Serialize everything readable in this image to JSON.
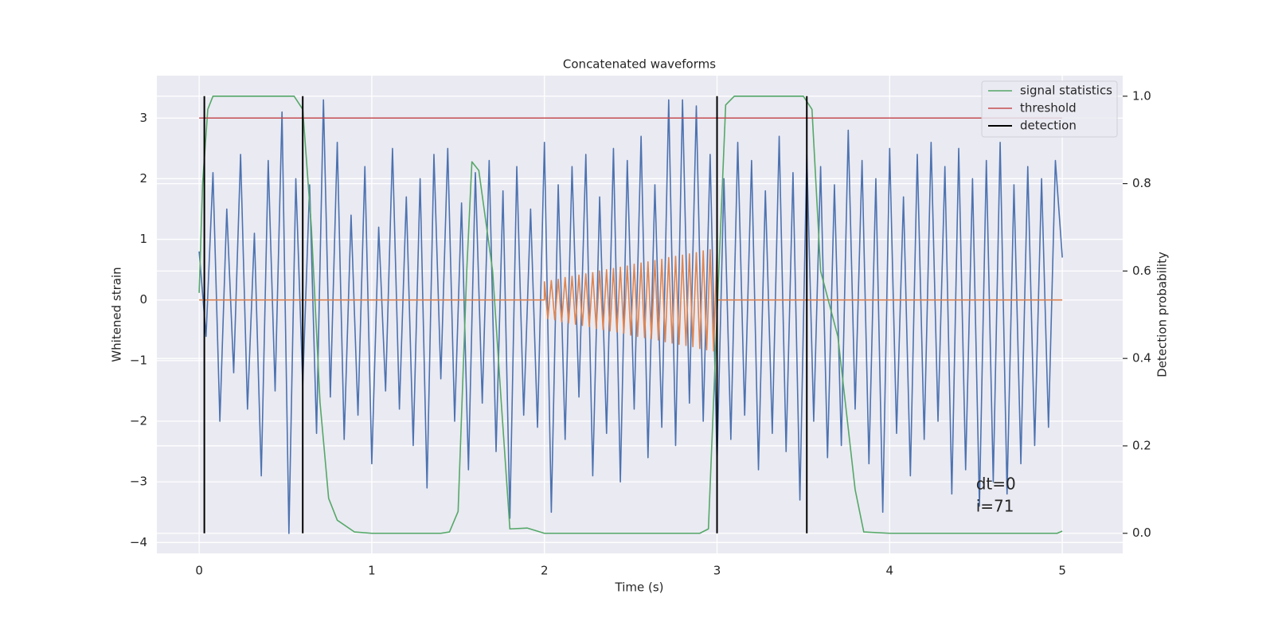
{
  "chart_data": {
    "type": "line",
    "title": "Concatenated waveforms",
    "xlabel": "Time (s)",
    "ylabel": "Whitened strain",
    "y2label": "Detection probability",
    "xlim": [
      -0.245,
      5.35
    ],
    "xticks": [
      0,
      1,
      2,
      3,
      4,
      5
    ],
    "ylim": [
      -4.18,
      3.7
    ],
    "yticks": [
      -4,
      -3,
      -2,
      -1,
      0,
      1,
      2,
      3
    ],
    "y2lim": [
      -0.046,
      1.047
    ],
    "y2ticks": [
      0.0,
      0.2,
      0.4,
      0.6,
      0.8,
      1.0
    ],
    "grid": true,
    "legend": "upper right",
    "series": [
      {
        "color": "#4c72b0",
        "x": [
          0,
          0.04,
          0.08,
          0.12,
          0.16,
          0.2,
          0.24,
          0.28,
          0.32,
          0.36,
          0.4,
          0.44,
          0.48,
          0.52,
          0.56,
          0.6,
          0.64,
          0.68,
          0.72,
          0.76,
          0.8,
          0.84,
          0.88,
          0.92,
          0.96,
          1.0,
          1.04,
          1.08,
          1.12,
          1.16,
          1.2,
          1.24,
          1.28,
          1.32,
          1.36,
          1.4,
          1.44,
          1.48,
          1.52,
          1.56,
          1.6,
          1.64,
          1.68,
          1.72,
          1.76,
          1.8,
          1.84,
          1.88,
          1.92,
          1.96,
          2.0,
          2.04,
          2.08,
          2.12,
          2.16,
          2.2,
          2.24,
          2.28,
          2.32,
          2.36,
          2.4,
          2.44,
          2.48,
          2.52,
          2.56,
          2.6,
          2.64,
          2.68,
          2.72,
          2.76,
          2.8,
          2.84,
          2.88,
          2.92,
          2.96,
          3.0,
          3.04,
          3.08,
          3.12,
          3.16,
          3.2,
          3.24,
          3.28,
          3.32,
          3.36,
          3.4,
          3.44,
          3.48,
          3.52,
          3.56,
          3.6,
          3.64,
          3.68,
          3.72,
          3.76,
          3.8,
          3.84,
          3.88,
          3.92,
          3.96,
          4.0,
          4.04,
          4.08,
          4.12,
          4.16,
          4.2,
          4.24,
          4.28,
          4.32,
          4.36,
          4.4,
          4.44,
          4.48,
          4.52,
          4.56,
          4.6,
          4.64,
          4.68,
          4.72,
          4.76,
          4.8,
          4.84,
          4.88,
          4.92,
          4.96,
          5.0
        ],
        "values": [
          0.8,
          -0.6,
          2.1,
          -2.0,
          1.5,
          -1.2,
          2.4,
          -1.8,
          1.1,
          -2.9,
          2.3,
          -1.5,
          3.1,
          -3.85,
          2.0,
          -1.4,
          1.9,
          -2.2,
          3.3,
          -1.6,
          2.6,
          -2.3,
          1.4,
          -1.9,
          2.2,
          -2.7,
          1.2,
          -1.5,
          2.5,
          -1.8,
          1.7,
          -2.4,
          2.0,
          -3.1,
          2.4,
          -1.3,
          2.5,
          -2.0,
          1.6,
          -2.8,
          2.1,
          -1.7,
          2.3,
          -2.5,
          1.8,
          -3.6,
          2.2,
          -1.9,
          1.5,
          -2.1,
          2.6,
          -3.5,
          1.9,
          -2.3,
          2.2,
          -1.6,
          2.4,
          -2.9,
          1.7,
          -2.2,
          2.5,
          -3.0,
          2.3,
          -1.8,
          2.7,
          -2.6,
          1.9,
          -2.1,
          3.3,
          -2.4,
          3.3,
          -1.7,
          3.2,
          -2.0,
          2.4,
          -2.7,
          2.0,
          -2.3,
          2.6,
          -1.9,
          2.3,
          -2.8,
          1.8,
          -2.2,
          2.7,
          -2.5,
          2.1,
          -3.3,
          2.4,
          -2.0,
          2.2,
          -2.6,
          1.9,
          -2.4,
          2.8,
          -1.8,
          2.3,
          -2.7,
          2.0,
          -3.5,
          2.5,
          -2.2,
          1.7,
          -2.9,
          2.4,
          -2.3,
          2.6,
          -2.0,
          2.2,
          -3.2,
          2.5,
          -2.8,
          2.0,
          -3.4,
          2.3,
          -3.0,
          2.6,
          -3.2,
          1.9,
          -2.7,
          2.2,
          -2.4,
          2.0,
          -2.1,
          2.3,
          0.7
        ]
      },
      {
        "color": "#dd8452",
        "x": [
          0,
          2.0,
          2.0,
          2.02,
          2.04,
          2.06,
          2.08,
          2.1,
          2.12,
          2.14,
          2.16,
          2.18,
          2.2,
          2.22,
          2.24,
          2.26,
          2.28,
          2.3,
          2.32,
          2.34,
          2.36,
          2.38,
          2.4,
          2.42,
          2.44,
          2.46,
          2.48,
          2.5,
          2.52,
          2.54,
          2.56,
          2.58,
          2.6,
          2.62,
          2.64,
          2.66,
          2.68,
          2.7,
          2.72,
          2.74,
          2.76,
          2.78,
          2.8,
          2.82,
          2.84,
          2.86,
          2.88,
          2.9,
          2.92,
          2.94,
          2.96,
          2.98,
          3.0,
          3.0,
          5.0
        ],
        "values": [
          0,
          0,
          0.3,
          -0.31,
          0.32,
          -0.33,
          0.34,
          -0.36,
          0.37,
          -0.38,
          0.39,
          -0.4,
          0.41,
          -0.42,
          0.43,
          -0.44,
          0.45,
          -0.47,
          0.48,
          -0.49,
          0.5,
          -0.51,
          0.52,
          -0.53,
          0.54,
          -0.55,
          0.56,
          -0.58,
          0.59,
          -0.6,
          0.61,
          -0.62,
          0.63,
          -0.64,
          0.65,
          -0.66,
          0.67,
          -0.69,
          0.7,
          -0.71,
          0.72,
          -0.73,
          0.74,
          -0.75,
          0.76,
          -0.77,
          0.78,
          -0.8,
          0.81,
          -0.82,
          0.83,
          -0.84,
          0.85,
          0,
          0
        ]
      },
      {
        "name": "signal statistics",
        "color": "#55a868",
        "axis": "y2",
        "x": [
          0,
          0.02,
          0.05,
          0.08,
          0.1,
          0.3,
          0.55,
          0.6,
          0.65,
          0.7,
          0.75,
          0.8,
          0.9,
          1.0,
          1.4,
          1.45,
          1.5,
          1.55,
          1.58,
          1.62,
          1.7,
          1.75,
          1.8,
          1.9,
          2.0,
          2.5,
          2.9,
          2.95,
          3.0,
          3.05,
          3.1,
          3.5,
          3.55,
          3.6,
          3.7,
          3.8,
          3.85,
          4.0,
          4.97,
          5.0
        ],
        "values": [
          0.55,
          0.8,
          0.97,
          1.0,
          1.0,
          1.0,
          1.0,
          0.97,
          0.7,
          0.3,
          0.08,
          0.03,
          0.003,
          0.0,
          0.0,
          0.003,
          0.05,
          0.6,
          0.85,
          0.83,
          0.6,
          0.3,
          0.01,
          0.012,
          0.0,
          0.0,
          0.0,
          0.01,
          0.5,
          0.98,
          1.0,
          1.0,
          0.97,
          0.6,
          0.45,
          0.1,
          0.003,
          0.0,
          0.0,
          0.005
        ]
      },
      {
        "name": "threshold",
        "color": "#c44e52",
        "axis": "y2",
        "x": [
          0,
          5
        ],
        "values": [
          0.95,
          0.95
        ]
      }
    ],
    "vlines": {
      "name": "detection",
      "color": "#000000",
      "axis": "y2",
      "x": [
        0.03,
        0.6,
        3.0,
        3.52
      ],
      "ymin": 0,
      "ymax": 1
    },
    "annotation": {
      "lines": [
        "dt=0",
        "i=71"
      ],
      "x": 4.5,
      "y": -3.05
    }
  }
}
